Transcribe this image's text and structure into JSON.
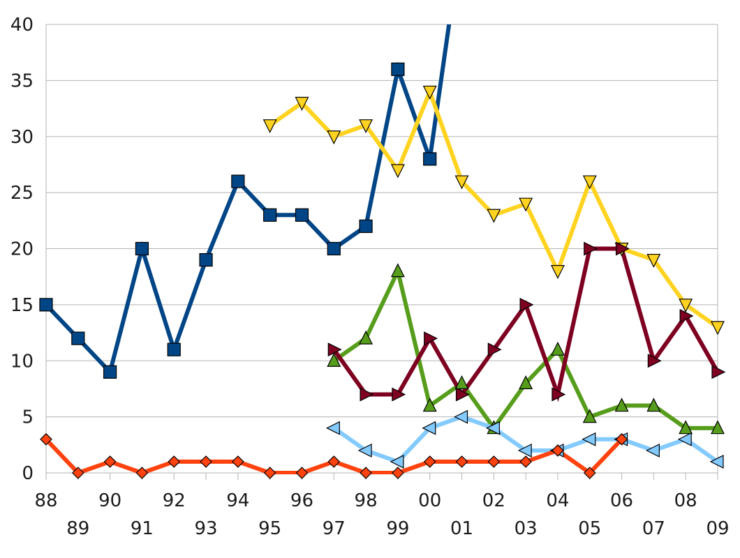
{
  "chart_data": {
    "type": "line",
    "title": "",
    "xlabel": "",
    "ylabel": "",
    "ylim": [
      0,
      40
    ],
    "yticks": [
      0,
      5,
      10,
      15,
      20,
      25,
      30,
      35,
      40
    ],
    "grid": true,
    "legend": "none",
    "categories": [
      "88",
      "89",
      "90",
      "91",
      "92",
      "93",
      "94",
      "95",
      "96",
      "97",
      "98",
      "99",
      "00",
      "01",
      "02",
      "03",
      "04",
      "05",
      "06",
      "07",
      "08",
      "09"
    ],
    "series": [
      {
        "color": "#004586",
        "marker": "square",
        "values": [
          15,
          12,
          9,
          20,
          11,
          19,
          26,
          23,
          23,
          20,
          22,
          36,
          28,
          48,
          null,
          null,
          null,
          null,
          null,
          null,
          null,
          null
        ]
      },
      {
        "color": "#FFD320",
        "marker": "triangle-down",
        "values": [
          null,
          null,
          null,
          null,
          null,
          null,
          null,
          31,
          33,
          30,
          31,
          27,
          34,
          26,
          23,
          24,
          18,
          26,
          20,
          19,
          15,
          13
        ]
      },
      {
        "color": "#579D1C",
        "marker": "triangle-up",
        "values": [
          null,
          null,
          null,
          null,
          null,
          null,
          null,
          null,
          null,
          10,
          12,
          18,
          6,
          8,
          4,
          8,
          11,
          5,
          6,
          6,
          4,
          4
        ]
      },
      {
        "color": "#7E0021",
        "marker": "triangle-right",
        "values": [
          null,
          null,
          null,
          null,
          null,
          null,
          null,
          null,
          null,
          11,
          7,
          7,
          12,
          7,
          11,
          15,
          7,
          20,
          20,
          10,
          14,
          9
        ]
      },
      {
        "color": "#83CAFF",
        "marker": "triangle-left",
        "values": [
          null,
          null,
          null,
          null,
          null,
          null,
          null,
          null,
          null,
          4,
          2,
          1,
          4,
          5,
          4,
          2,
          2,
          3,
          3,
          2,
          3,
          1
        ]
      },
      {
        "color": "#FF420E",
        "marker": "diamond",
        "values": [
          3,
          0,
          1,
          0,
          1,
          1,
          1,
          0,
          0,
          1,
          0,
          0,
          1,
          1,
          1,
          1,
          2,
          0,
          3,
          null,
          null,
          null
        ]
      }
    ]
  }
}
